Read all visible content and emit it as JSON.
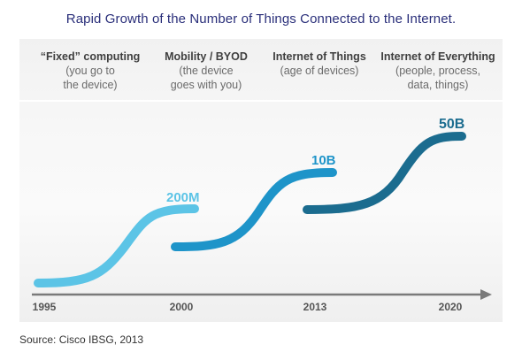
{
  "title": "Rapid Growth of the Number of Things Connected to the Internet.",
  "eras": [
    {
      "title": "“Fixed” computing",
      "line1": "(you go to",
      "line2": "the device)"
    },
    {
      "title": "Mobility / BYOD",
      "line1": "(the device",
      "line2": "goes with you)"
    },
    {
      "title": "Internet of Things",
      "line1": "(age of devices)",
      "line2": ""
    },
    {
      "title": "Internet of Everything",
      "line1": "(people, process,",
      "line2": "data, things)"
    }
  ],
  "milestones": [
    {
      "label": "200M",
      "color": "#5cc4e6"
    },
    {
      "label": "10B",
      "color": "#1e94c9"
    },
    {
      "label": "50B",
      "color": "#1b6c8f"
    }
  ],
  "timeline": {
    "years": [
      "1995",
      "2000",
      "2013",
      "2020"
    ],
    "axis_color": "#7a7a7a"
  },
  "source": "Source: Cisco IBSG, 2013"
}
